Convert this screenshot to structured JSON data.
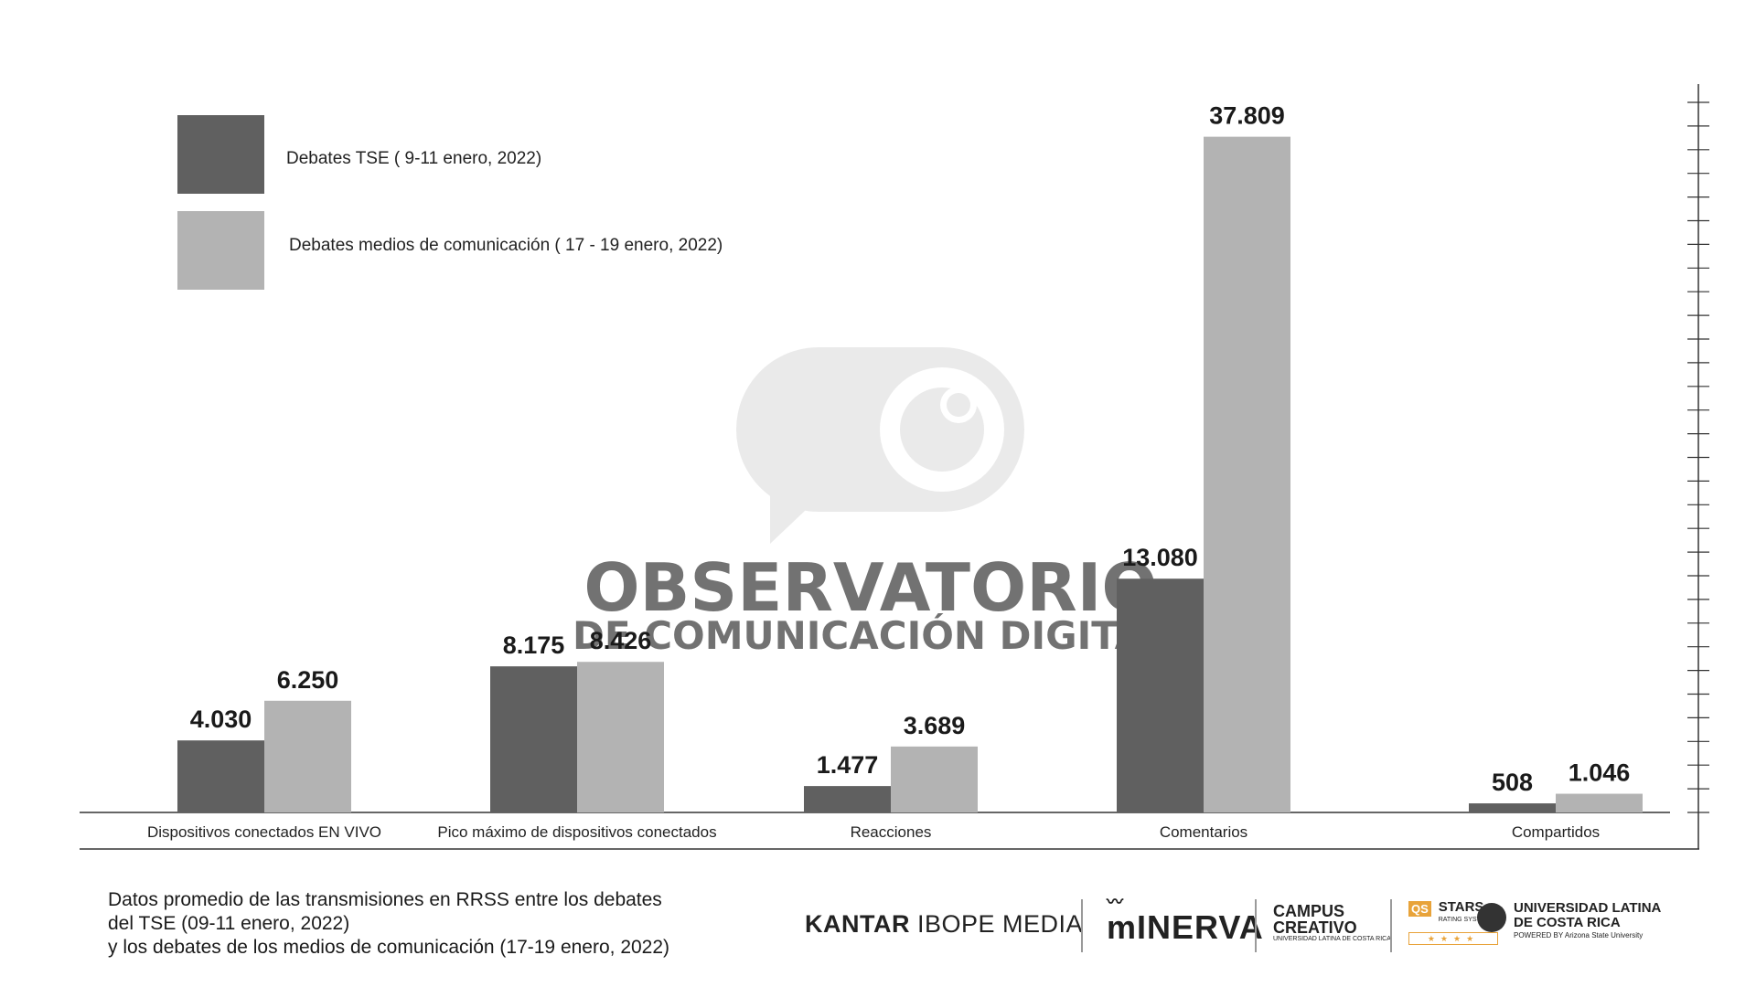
{
  "chart_data": {
    "type": "bar",
    "categories": [
      "Dispositivos conectados EN VIVO",
      "Pico máximo de dispositivos conectados",
      "Reacciones",
      "Comentarios",
      "Compartidos"
    ],
    "series": [
      {
        "name": "Debates TSE ( 9-11 enero, 2022)",
        "color": "#606060",
        "values": [
          4030,
          8175,
          1477,
          13080,
          508
        ],
        "labels": [
          "4.030",
          "8.175",
          "1.477",
          "13.080",
          "508"
        ]
      },
      {
        "name": "Debates medios de comunicación ( 17 - 19 enero, 2022)",
        "color": "#b3b3b3",
        "values": [
          6250,
          8426,
          3689,
          37809,
          1046
        ],
        "labels": [
          "6.250",
          "8.426",
          "3.689",
          "37.809",
          "1.046"
        ]
      }
    ],
    "ylim": [
      0,
      40500
    ],
    "grid": false,
    "legend": "top-left",
    "right_axis": "tick marks only, no labels"
  },
  "watermark": {
    "line1": "OBSERVATORIO",
    "line2": "DE COMUNICACIÓN DIGITAL",
    "color": "#d9d9d9"
  },
  "caption": {
    "line1": "Datos promedio de las transmisiones en RRSS entre los debates",
    "line2": "del TSE (09-11 enero, 2022)",
    "line3": "y los debates de los medios de comunicación (17-19 enero, 2022)"
  },
  "logos": {
    "kantar_bold": "KANTAR",
    "kantar_light": "IBOPE MEDIA",
    "minerva": "mINERVA",
    "campus": "CAMPUS",
    "creativo": "CREATIVO",
    "campus_sub": "UNIVERSIDAD LATINA DE COSTA RICA",
    "qs_badge": "QS",
    "qs_stars": "STARS",
    "qs_sub": "RATING SYSTEM",
    "ulatina_1": "UNIVERSIDAD LATINA",
    "ulatina_2": "DE COSTA RICA",
    "ulatina_sub": "POWERED BY Arizona State University"
  }
}
